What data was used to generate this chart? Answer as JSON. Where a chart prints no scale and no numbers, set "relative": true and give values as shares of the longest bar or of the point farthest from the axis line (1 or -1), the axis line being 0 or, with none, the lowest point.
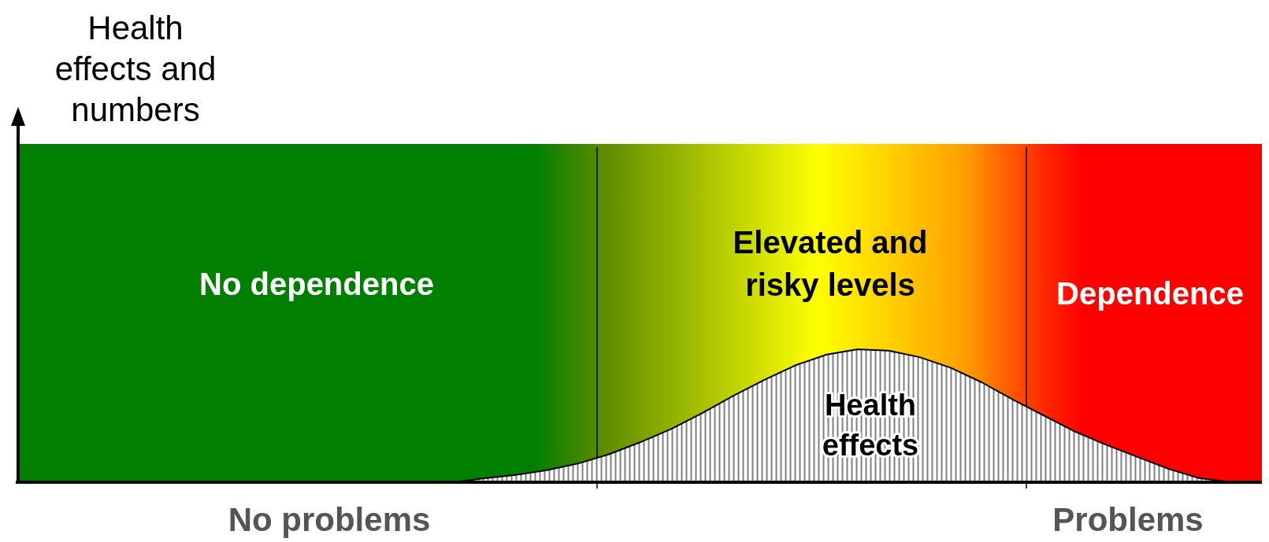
{
  "chart_data": {
    "type": "area",
    "relative": true,
    "categories": [
      null,
      null,
      null,
      null,
      null,
      null,
      null,
      null,
      null,
      null,
      null,
      null,
      null,
      null,
      null,
      null,
      null,
      null,
      null,
      null,
      null,
      null,
      null,
      null,
      null,
      null,
      null,
      null,
      null,
      null,
      null,
      null,
      null,
      null,
      null,
      null,
      null,
      null,
      null,
      null,
      null
    ],
    "series": [
      {
        "color": "#808080",
        "values": [
          0,
          0,
          0,
          0,
          0,
          0,
          0,
          0,
          0,
          0,
          0,
          0,
          0,
          0,
          0,
          0.03,
          0.055,
          0.09,
          0.14,
          0.21,
          0.3,
          0.4,
          0.52,
          0.65,
          0.77,
          0.88,
          0.96,
          1,
          0.99,
          0.94,
          0.86,
          0.75,
          0.62,
          0.5,
          0.38,
          0.28,
          0.19,
          0.1,
          0.03,
          0,
          0
        ]
      }
    ],
    "annotations": [
      "Health effects and numbers",
      "No dependence",
      "Elevated and risky levels",
      "Dependence",
      "Health effects",
      "No problems",
      "Problems"
    ]
  }
}
